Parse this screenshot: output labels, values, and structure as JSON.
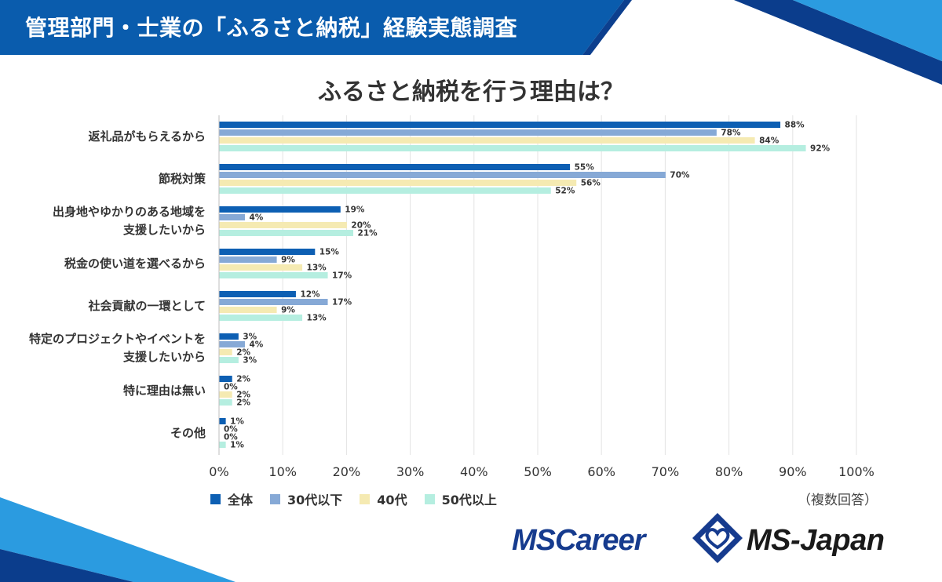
{
  "header": {
    "title": "管理部門・士業の「ふるさと納税」経験実態調査"
  },
  "colors": {
    "banner": "#0a5cad",
    "banner_dark": "#0c3f8e",
    "accent_light": "#2b9be0"
  },
  "chart_data": {
    "type": "bar",
    "orientation": "horizontal",
    "title": "ふるさと納税を行う理由は？",
    "categories": [
      [
        "返礼品がもらえるから"
      ],
      [
        "節税対策"
      ],
      [
        "出身地やゆかりのある地域を",
        "支援したいから"
      ],
      [
        "税金の使い道を選べるから"
      ],
      [
        "社会貢献の一環として"
      ],
      [
        "特定のプロジェクトやイベントを",
        "支援したいから"
      ],
      [
        "特に理由は無い"
      ],
      [
        "その他"
      ]
    ],
    "series": [
      {
        "name": "全体",
        "color": "#0d5fb3",
        "values": [
          88,
          55,
          19,
          15,
          12,
          3,
          2,
          1
        ]
      },
      {
        "name": "30代以下",
        "color": "#86a9d6",
        "values": [
          78,
          70,
          4,
          9,
          17,
          4,
          0,
          0
        ]
      },
      {
        "name": "40代",
        "color": "#f5eab2",
        "values": [
          84,
          56,
          20,
          13,
          9,
          2,
          2,
          0
        ]
      },
      {
        "name": "50代以上",
        "color": "#b5eee0",
        "values": [
          92,
          52,
          21,
          17,
          13,
          3,
          2,
          1
        ]
      }
    ],
    "value_suffix": "%",
    "xlim": [
      0,
      100
    ],
    "x_ticks": [
      "0%",
      "10%",
      "20%",
      "30%",
      "40%",
      "50%",
      "60%",
      "70%",
      "80%",
      "90%",
      "100%"
    ],
    "grid": true,
    "legend_position": "bottom-left",
    "note": "（複数回答）"
  },
  "footer": {
    "logo_left": "MSCareer",
    "logo_right": "MS-Japan"
  }
}
